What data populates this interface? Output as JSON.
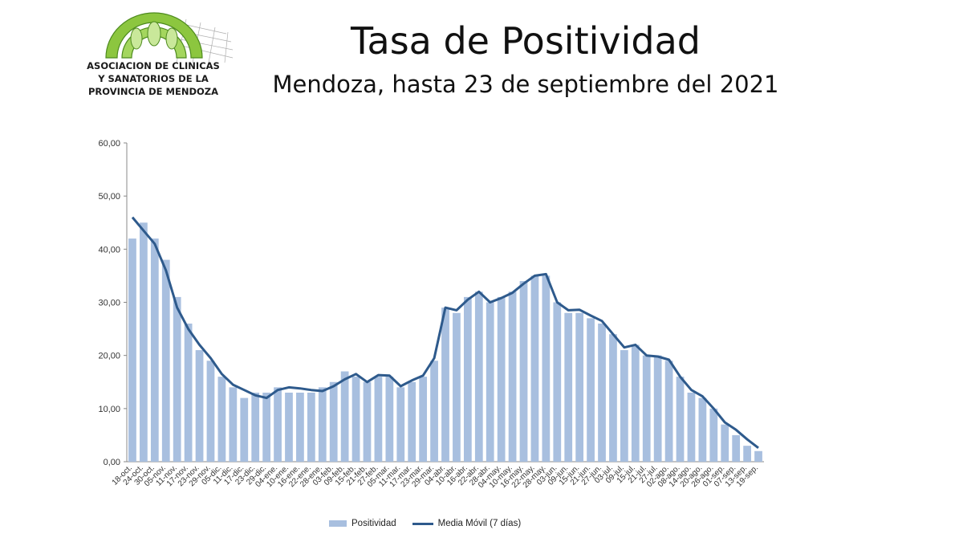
{
  "logo": {
    "lines": [
      "ASOCIACION DE CLINICAS",
      "Y SANATORIOS DE LA",
      "PROVINCIA DE MENDOZA"
    ]
  },
  "header": {
    "title": "Tasa de Positividad",
    "subtitle": "Mendoza, hasta 23 de septiembre del 2021"
  },
  "chart_data": {
    "type": "bar",
    "ylim": [
      0,
      60
    ],
    "yticks": [
      "0,00",
      "10,00",
      "20,00",
      "30,00",
      "40,00",
      "50,00",
      "60,00"
    ],
    "grid": false,
    "legend_position": "bottom",
    "categories": [
      "18-oct.",
      "24-oct.",
      "30-oct.",
      "05-nov.",
      "11-nov.",
      "17-nov.",
      "23-nov.",
      "29-nov.",
      "05-dic.",
      "11-dic.",
      "17-dic.",
      "23-dic.",
      "29-dic.",
      "04-ene.",
      "10-ene.",
      "16-ene.",
      "22-ene.",
      "28-ene.",
      "03-feb.",
      "09-feb.",
      "15-feb.",
      "21-feb.",
      "27-feb.",
      "05-mar.",
      "11-mar.",
      "17-mar.",
      "23-mar.",
      "29-mar.",
      "04-abr.",
      "10-abr.",
      "16-abr.",
      "22-abr.",
      "28-abr.",
      "04-may.",
      "10-may.",
      "16-may.",
      "22-may.",
      "28-may.",
      "03-jun.",
      "09-jun.",
      "15-jun.",
      "21-jun.",
      "27-jun.",
      "03-jul.",
      "09-jul.",
      "15-jul.",
      "21-jul.",
      "27-jul.",
      "02-ago.",
      "08-ago.",
      "14-ago.",
      "20-ago.",
      "26-ago.",
      "01-sep.",
      "07-sep.",
      "13-sep.",
      "19-sep."
    ],
    "series": [
      {
        "name": "Positividad",
        "values": [
          42,
          45,
          42,
          38,
          31,
          26,
          21,
          19,
          16,
          14,
          12,
          13,
          13,
          14,
          13,
          13,
          13,
          14,
          15,
          17,
          16,
          15,
          16,
          16,
          14,
          15,
          16,
          19,
          29,
          28,
          31,
          32,
          30,
          31,
          32,
          34,
          35,
          35,
          30,
          28,
          28,
          27,
          26,
          24,
          21,
          22,
          20,
          20,
          19,
          16,
          13,
          12,
          10,
          7,
          5,
          3,
          2
        ]
      },
      {
        "name": "Media Móvil (7 días)",
        "values": [
          46,
          43.5,
          41,
          36,
          29,
          25,
          22,
          19.5,
          16.5,
          14.5,
          13.5,
          12.5,
          12,
          13.5,
          14,
          13.8,
          13.5,
          13.3,
          14.2,
          15.5,
          16.5,
          15,
          16.3,
          16.2,
          14.2,
          15.3,
          16.2,
          19.5,
          29,
          28.5,
          30.5,
          32,
          30,
          30.8,
          31.8,
          33.5,
          35,
          35.3,
          30,
          28.5,
          28.6,
          27.5,
          26.5,
          24,
          21.5,
          22,
          20,
          19.8,
          19.2,
          16,
          13.5,
          12.3,
          10,
          7.4,
          6,
          4.2,
          2.6
        ]
      }
    ]
  }
}
